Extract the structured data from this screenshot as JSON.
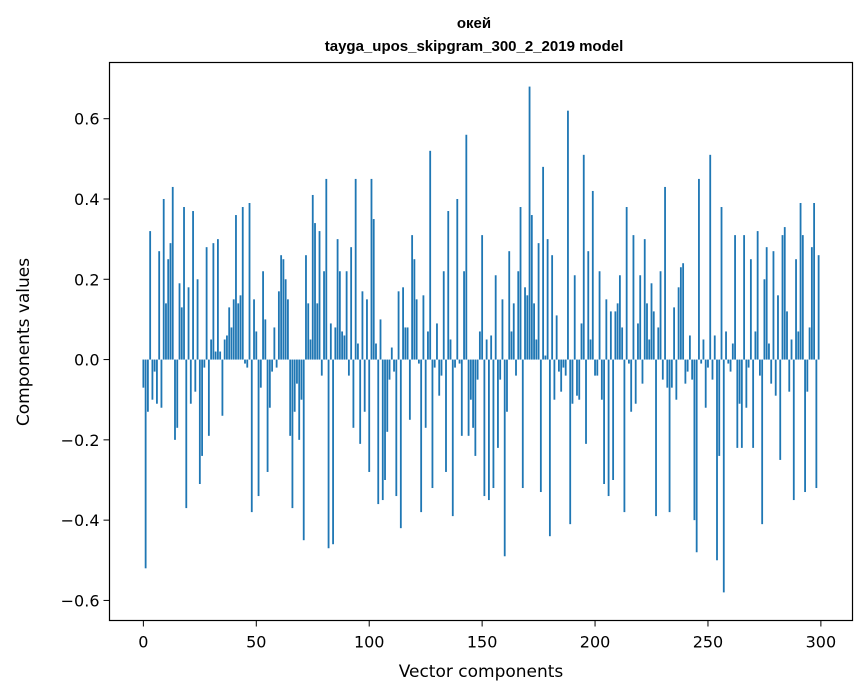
{
  "chart_data": {
    "type": "bar",
    "title": "окей",
    "subtitle": "tayga_upos_skipgram_300_2_2019 model",
    "xlabel": "Vector components",
    "ylabel": "Components values",
    "xlim": [
      -15,
      314
    ],
    "ylim": [
      -0.65,
      0.74
    ],
    "xticks": [
      0,
      50,
      100,
      150,
      200,
      250,
      300
    ],
    "xtick_labels": [
      "0",
      "50",
      "100",
      "150",
      "200",
      "250",
      "300"
    ],
    "yticks": [
      -0.6,
      -0.4,
      -0.2,
      0.0,
      0.2,
      0.4,
      0.6
    ],
    "ytick_labels": [
      "−0.6",
      "−0.4",
      "−0.2",
      "0.0",
      "0.2",
      "0.4",
      "0.6"
    ],
    "grid": false,
    "bar_color": "#1f77b4",
    "x": "0..299",
    "values": [
      -0.07,
      -0.52,
      -0.13,
      0.32,
      -0.1,
      -0.03,
      -0.11,
      0.27,
      -0.12,
      0.4,
      0.14,
      0.25,
      0.29,
      0.43,
      -0.2,
      -0.17,
      0.19,
      0.13,
      0.38,
      -0.37,
      0.18,
      -0.11,
      0.37,
      -0.08,
      0.2,
      -0.31,
      -0.24,
      -0.02,
      0.28,
      -0.19,
      0.05,
      0.29,
      0.02,
      0.3,
      0.02,
      -0.14,
      0.05,
      0.06,
      0.13,
      0.08,
      0.15,
      0.36,
      0.14,
      0.16,
      0.38,
      -0.01,
      -0.02,
      0.39,
      -0.38,
      0.15,
      0.07,
      -0.34,
      -0.07,
      0.22,
      0.1,
      -0.28,
      -0.12,
      -0.03,
      0.08,
      -0.02,
      0.17,
      0.26,
      0.25,
      0.2,
      0.15,
      -0.19,
      -0.37,
      -0.13,
      -0.06,
      -0.2,
      -0.1,
      -0.45,
      0.26,
      0.14,
      0.05,
      0.41,
      0.34,
      0.14,
      0.32,
      -0.04,
      0.22,
      0.45,
      -0.47,
      0.09,
      -0.46,
      0.08,
      0.3,
      0.22,
      0.07,
      0.06,
      0.22,
      -0.04,
      0.28,
      -0.17,
      0.45,
      0.04,
      -0.21,
      0.17,
      -0.13,
      0.15,
      -0.28,
      0.45,
      0.35,
      0.04,
      -0.36,
      0.1,
      -0.35,
      -0.3,
      -0.18,
      -0.05,
      0.03,
      -0.03,
      -0.34,
      0.17,
      -0.42,
      0.18,
      0.08,
      0.08,
      -0.15,
      0.31,
      0.25,
      0.15,
      -0.01,
      -0.38,
      0.16,
      -0.17,
      0.07,
      0.52,
      -0.32,
      -0.02,
      0.09,
      -0.09,
      -0.04,
      0.22,
      -0.28,
      0.37,
      0.05,
      -0.39,
      -0.02,
      0.4,
      -0.01,
      -0.19,
      0.22,
      0.56,
      -0.19,
      -0.1,
      -0.17,
      -0.24,
      -0.05,
      0.07,
      0.31,
      -0.34,
      0.05,
      -0.35,
      0.06,
      -0.32,
      0.21,
      -0.22,
      -0.05,
      0.15,
      -0.49,
      -0.13,
      0.27,
      0.07,
      0.14,
      -0.04,
      0.22,
      0.38,
      -0.32,
      0.18,
      0.16,
      0.68,
      0.36,
      0.14,
      0.05,
      0.29,
      -0.33,
      0.48,
      0.01,
      0.3,
      -0.44,
      0.26,
      -0.1,
      0.11,
      -0.03,
      -0.08,
      -0.02,
      -0.04,
      0.62,
      -0.41,
      -0.11,
      0.21,
      -0.09,
      -0.1,
      0.09,
      0.51,
      -0.21,
      0.27,
      0.05,
      0.42,
      -0.04,
      -0.04,
      0.22,
      -0.1,
      -0.31,
      0.15,
      -0.34,
      0.12,
      -0.3,
      0.12,
      0.14,
      0.21,
      0.08,
      -0.38,
      0.38,
      -0.01,
      -0.13,
      0.31,
      -0.11,
      0.09,
      0.21,
      -0.06,
      0.3,
      0.14,
      0.05,
      0.19,
      0.12,
      -0.39,
      0.08,
      0.22,
      -0.05,
      0.43,
      -0.07,
      -0.38,
      -0.07,
      0.13,
      -0.1,
      0.18,
      0.23,
      0.24,
      -0.06,
      -0.03,
      0.06,
      -0.05,
      -0.4,
      -0.48,
      0.45,
      -0.01,
      0.05,
      -0.12,
      -0.02,
      0.51,
      -0.05,
      0.06,
      -0.5,
      -0.24,
      0.38,
      -0.58,
      0.07,
      -0.01,
      -0.03,
      0.04,
      0.31,
      -0.22,
      -0.11,
      -0.22,
      0.31,
      -0.12,
      -0.02,
      0.25,
      -0.22,
      0.07,
      0.32,
      -0.04,
      -0.41,
      0.2,
      0.28,
      0.04,
      -0.06,
      0.27,
      -0.09,
      0.16,
      -0.25,
      0.31,
      0.33,
      0.12,
      -0.08,
      0.05,
      -0.35,
      0.25,
      0.07,
      0.39,
      0.31,
      -0.33,
      -0.08,
      0.08,
      0.28,
      0.39,
      -0.32,
      0.26
    ]
  }
}
